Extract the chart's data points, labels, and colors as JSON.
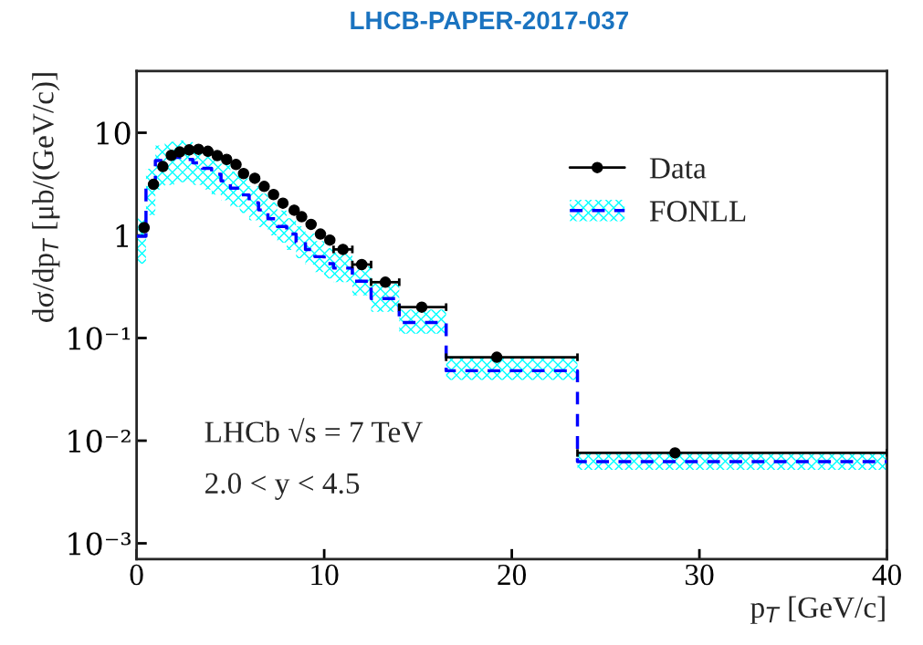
{
  "chart_data": {
    "type": "scatter",
    "title": "LHCB-PAPER-2017-037",
    "xlabel": "p$_{T}$ [GeV/c]",
    "ylabel": "dσ/dp$_{T}$ [μb/(GeV/c)]",
    "log": "y",
    "xlim": [
      0,
      40
    ],
    "ylim": [
      0.0007,
      40
    ],
    "xticks": [
      0,
      10,
      20,
      30,
      40
    ],
    "yticks": [
      {
        "value": 0.001,
        "label": "10⁻³"
      },
      {
        "value": 0.01,
        "label": "10⁻²"
      },
      {
        "value": 0.1,
        "label": "10⁻¹"
      },
      {
        "value": 1,
        "label": "1"
      },
      {
        "value": 10,
        "label": "10"
      }
    ],
    "grid": false,
    "legend": "top right",
    "marker": "circle",
    "annotations": [
      "LHCb √s = 7 TeV",
      "2.0 < y < 4.5"
    ],
    "series": [
      {
        "name": "Data",
        "color": "#000000",
        "x": [
          0.4,
          0.9,
          1.4,
          1.85,
          2.3,
          2.8,
          3.3,
          3.8,
          4.3,
          4.8,
          5.3,
          5.7,
          6.3,
          6.8,
          7.3,
          7.8,
          8.4,
          8.8,
          9.3,
          9.8,
          10.3,
          11,
          12,
          13.26,
          15.2,
          19.2,
          28.7
        ],
        "values": [
          1.19,
          3.14,
          4.68,
          6.03,
          6.5,
          6.8,
          6.9,
          6.6,
          6.0,
          5.5,
          4.9,
          4.0,
          3.6,
          3.0,
          2.5,
          2.06,
          1.76,
          1.52,
          1.28,
          1.03,
          0.9,
          0.73,
          0.52,
          0.35,
          0.2,
          0.065,
          0.0076
        ],
        "xerrors": [
          null,
          null,
          null,
          null,
          null,
          null,
          null,
          null,
          null,
          null,
          null,
          null,
          null,
          null,
          null,
          null,
          null,
          null,
          null,
          null,
          null,
          [
            10.5,
            11.5
          ],
          [
            11.5,
            12.5
          ],
          [
            12.5,
            14
          ],
          [
            14,
            16.5
          ],
          [
            16.5,
            23.5
          ],
          [
            23.5,
            40
          ]
        ]
      },
      {
        "name": "FONLL",
        "type": "step",
        "color": "#0000ff",
        "line_style": "dashed",
        "marker": "none",
        "x": [
          0,
          0.5,
          1,
          1.5,
          2,
          2.5,
          3,
          3.5,
          4,
          4.5,
          5,
          5.5,
          6,
          6.5,
          7,
          7.5,
          8,
          8.5,
          9,
          9.5,
          10,
          10.5,
          11.5,
          12.5,
          14,
          16.5,
          23.5,
          40
        ],
        "values": [
          0.98,
          2.97,
          5.35,
          5.6,
          5.76,
          5.5,
          5.1,
          4.5,
          3.95,
          3.4,
          2.88,
          2.48,
          2.08,
          1.77,
          1.45,
          1.22,
          1.03,
          0.86,
          0.73,
          0.62,
          0.53,
          0.48,
          0.357,
          0.243,
          0.142,
          0.048,
          0.00625,
          0.00625
        ],
        "upper": [
          1.47,
          4.45,
          7.5,
          8.2,
          8.4,
          8.1,
          7.5,
          6.6,
          5.8,
          5.0,
          4.2,
          3.6,
          3.0,
          2.55,
          2.1,
          1.75,
          1.47,
          1.23,
          1.04,
          0.88,
          0.75,
          0.68,
          0.5,
          0.34,
          0.19,
          0.064,
          0.0075,
          0.0075
        ],
        "lower": [
          0.53,
          1.58,
          2.8,
          3.1,
          3.3,
          3.3,
          3.1,
          2.8,
          2.5,
          2.2,
          1.9,
          1.65,
          1.4,
          1.2,
          1.0,
          0.85,
          0.72,
          0.6,
          0.52,
          0.44,
          0.38,
          0.35,
          0.26,
          0.18,
          0.11,
          0.039,
          0.0052,
          0.0052
        ]
      }
    ]
  }
}
